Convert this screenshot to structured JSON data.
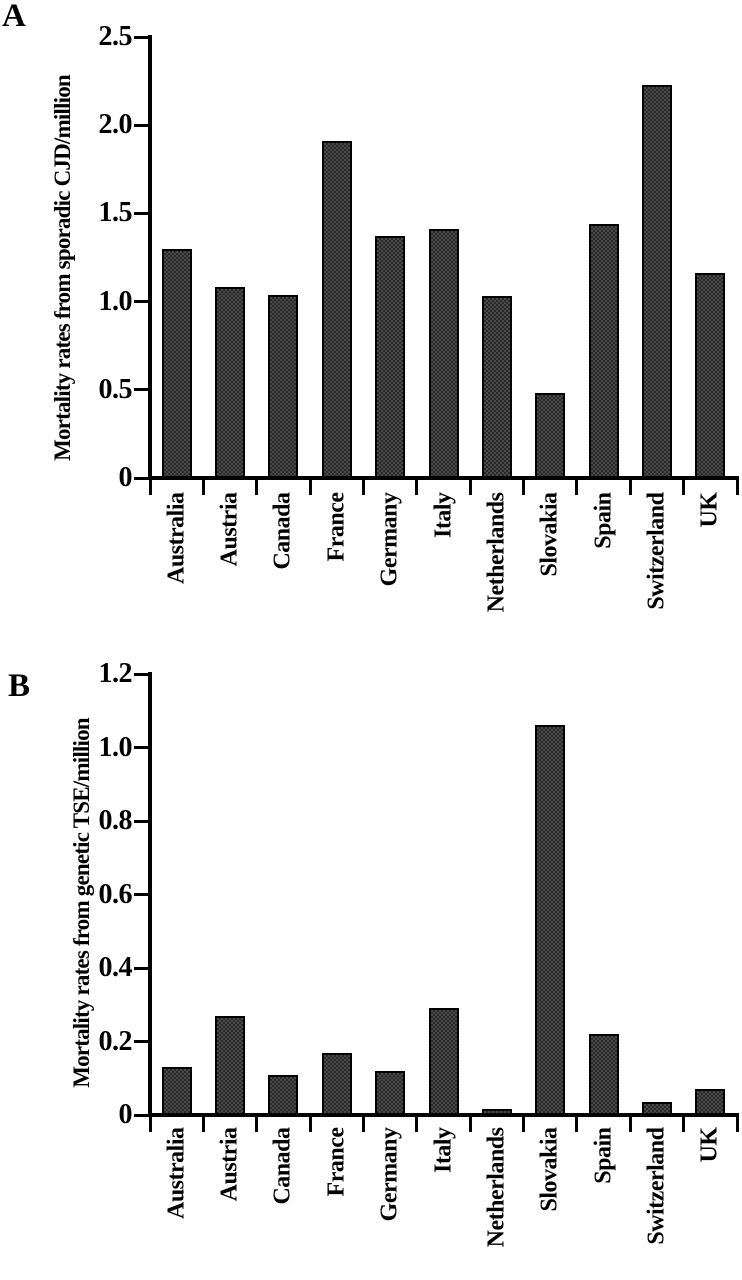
{
  "colors": {
    "background": "#ffffff",
    "bar_fill": "#4a4a4a",
    "bar_border": "#000000",
    "axis": "#000000",
    "text": "#000000"
  },
  "chart_data": [
    {
      "type": "bar",
      "panel": "A",
      "ylabel": "Mortality rates from sporadic CJD/million",
      "xlabel": "",
      "categories": [
        "Australia",
        "Austria",
        "Canada",
        "France",
        "Germany",
        "Italy",
        "Netherlands",
        "Slovakia",
        "Spain",
        "Switzerland",
        "UK"
      ],
      "values": [
        1.3,
        1.08,
        1.04,
        1.91,
        1.37,
        1.41,
        1.03,
        0.48,
        1.44,
        2.23,
        1.16
      ],
      "ylim": [
        0,
        2.5
      ],
      "ytick_labels": [
        "0",
        "0.5",
        "1.0",
        "1.5",
        "2.0",
        "2.5"
      ],
      "grid": false,
      "legend": false,
      "bar_texture": "dark-gray-stipple-black-outline"
    },
    {
      "type": "bar",
      "panel": "B",
      "ylabel": "Mortality rates from genetic TSE/million",
      "xlabel": "",
      "categories": [
        "Australia",
        "Austria",
        "Canada",
        "France",
        "Germany",
        "Italy",
        "Netherlands",
        "Slovakia",
        "Spain",
        "Switzerland",
        "UK"
      ],
      "values": [
        0.13,
        0.27,
        0.11,
        0.17,
        0.12,
        0.29,
        0.015,
        1.06,
        0.22,
        0.035,
        0.07
      ],
      "ylim": [
        0,
        1.2
      ],
      "ytick_labels": [
        "0",
        "0.2",
        "0.4",
        "0.6",
        "0.8",
        "1.0",
        "1.2"
      ],
      "grid": false,
      "legend": false,
      "bar_texture": "dark-gray-stipple-black-outline"
    }
  ]
}
